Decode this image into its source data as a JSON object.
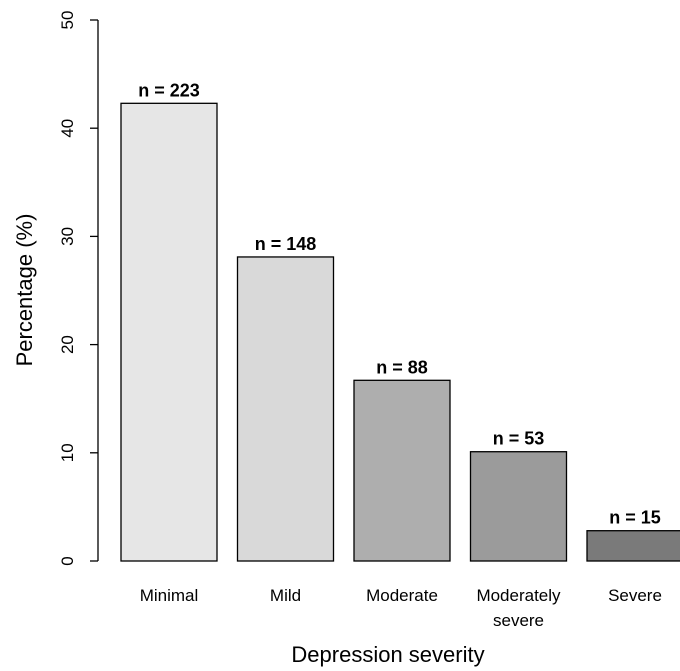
{
  "chart_data": {
    "type": "bar",
    "xlabel": "Depression severity",
    "ylabel": "Percentage (%)",
    "ylim": [
      0,
      50
    ],
    "yticks": [
      0,
      10,
      20,
      30,
      40,
      50
    ],
    "grid": false,
    "categories": [
      "Minimal",
      "Mild",
      "Moderate",
      "Moderately severe",
      "Severe"
    ],
    "category_lines": [
      [
        "Minimal"
      ],
      [
        "Mild"
      ],
      [
        "Moderate"
      ],
      [
        "Moderately",
        "severe"
      ],
      [
        "Severe"
      ]
    ],
    "values": [
      42.3,
      28.1,
      16.7,
      10.1,
      2.8
    ],
    "data_labels": [
      "n = 223",
      "n = 148",
      "n = 88",
      "n = 53",
      "n = 15"
    ],
    "bar_colors": [
      "#e6e6e6",
      "#d9d9d9",
      "#aeaeae",
      "#9b9b9b",
      "#7a7a7a"
    ]
  }
}
